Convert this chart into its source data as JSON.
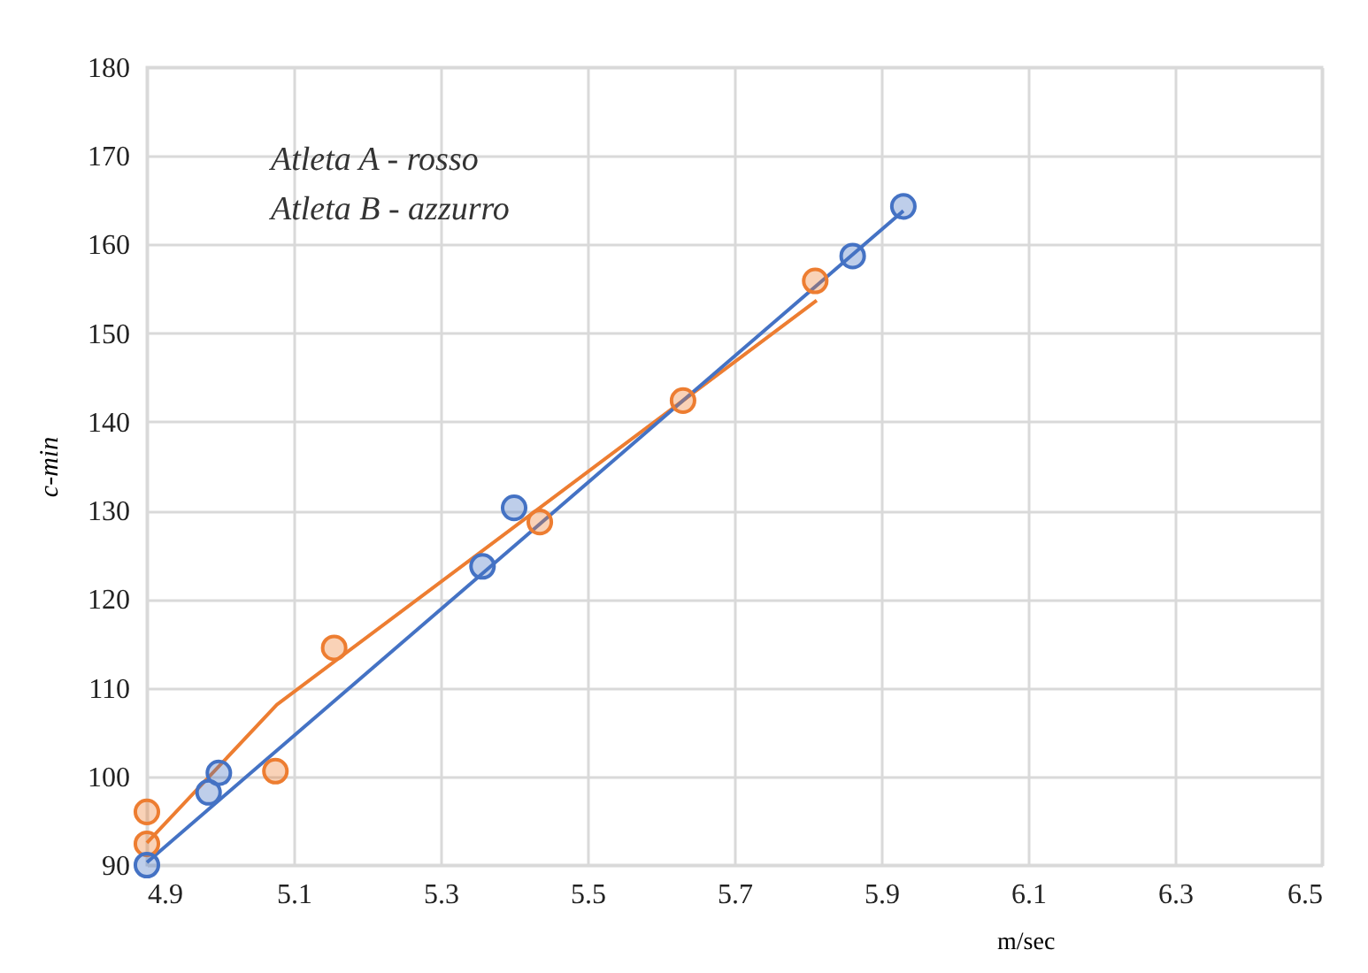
{
  "chart_data": {
    "type": "scatter",
    "xlabel": "m/sec",
    "ylabel": "c-min",
    "annotations": [
      "Atleta A - rosso",
      "Atleta B - azzurro"
    ],
    "series": [
      {
        "type": "scatter",
        "color": "#ed7d31",
        "marker": "circle",
        "x": [
          4.9,
          4.9,
          5.075,
          5.155,
          5.435,
          5.63,
          5.81
        ],
        "values": [
          96,
          92.4,
          100.6,
          114.5,
          128.7,
          142.4,
          155.9
        ]
      },
      {
        "type": "scatter",
        "color": "#4472c4",
        "marker": "circle",
        "x": [
          4.9,
          4.984,
          4.998,
          5.357,
          5.4,
          5.861,
          5.93
        ],
        "values": [
          90,
          98.2,
          100.4,
          123.7,
          130.3,
          158.7,
          164.3
        ]
      },
      {
        "type": "line",
        "color": "#ed7d31",
        "marker": "none",
        "x": [
          4.9,
          5.077,
          5.812
        ],
        "values": [
          92.5,
          108.1,
          153.7
        ]
      },
      {
        "type": "line",
        "color": "#4472c4",
        "marker": "none",
        "x": [
          4.9,
          5.93
        ],
        "values": [
          90.3,
          163.8
        ]
      }
    ],
    "xlim": [
      4.9,
      6.5
    ],
    "xticks": [
      4.9,
      5.1,
      5.3,
      5.5,
      5.7,
      5.9,
      6.1,
      6.3,
      6.5
    ],
    "ylim": [
      90,
      180
    ],
    "yticks": [
      90,
      100,
      110,
      120,
      130,
      140,
      150,
      160,
      170,
      180
    ],
    "grid": true
  }
}
